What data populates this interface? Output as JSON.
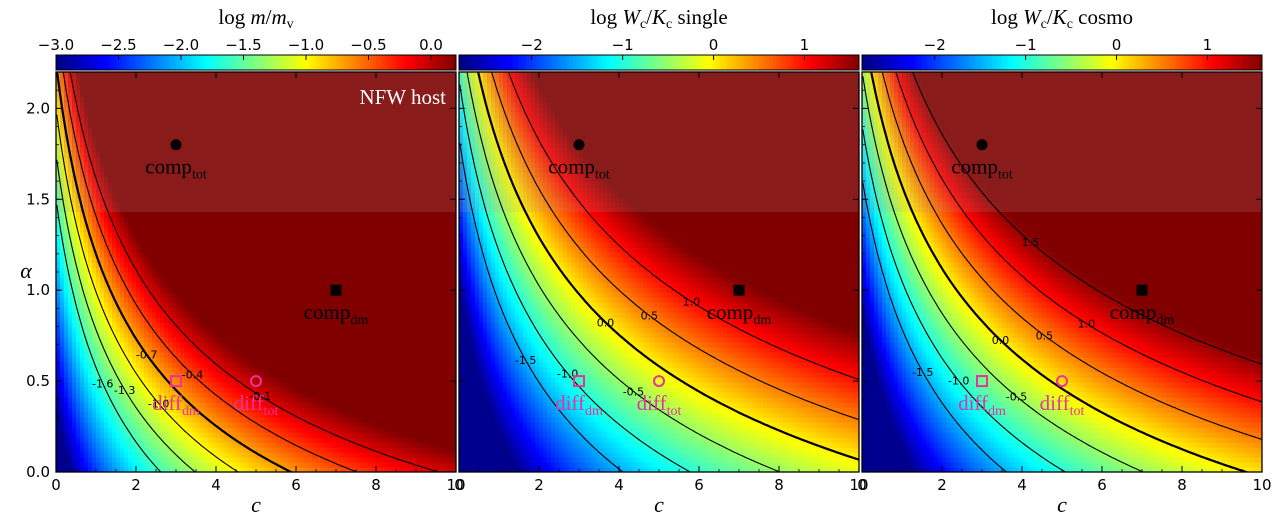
{
  "colors": {
    "marker_dark": "#000000",
    "marker_pink": "#e8339a",
    "contour": "#000000"
  },
  "chart_data": [
    {
      "type": "heatmap",
      "title": "log m/m_v",
      "title_parts": {
        "pre": "log ",
        "m1": "m",
        "sep": "/",
        "m2": "m",
        "sub2": "v",
        "post": ""
      },
      "xlabel": "c",
      "ylabel": "α",
      "xlim": [
        0,
        10
      ],
      "ylim": [
        0,
        2.2
      ],
      "x_ticks": [
        "0",
        "2",
        "4",
        "6",
        "8",
        "10"
      ],
      "y_ticks": [
        "0.0",
        "0.5",
        "1.0",
        "1.5",
        "2.0"
      ],
      "colorbar": {
        "range": [
          -3.0,
          0.2
        ],
        "ticks": [
          -3.0,
          -2.5,
          -2.0,
          -1.5,
          -1.0,
          -0.5,
          0.0
        ],
        "tick_labels": [
          "−3.0",
          "−2.5",
          "−2.0",
          "−1.5",
          "−1.0",
          "−0.5",
          "0.0"
        ]
      },
      "contours": [
        {
          "level": -1.6,
          "label": "-1.6"
        },
        {
          "level": -1.3,
          "label": "-1.3"
        },
        {
          "level": -1.0,
          "label": "-1.0"
        },
        {
          "level": -0.7,
          "label": "-0.7",
          "bold": true
        },
        {
          "level": -0.4,
          "label": "-0.4"
        },
        {
          "level": -0.1,
          "label": "-0.1"
        }
      ],
      "annotation": "NFW host",
      "points": [
        {
          "name": "comp",
          "sub": "tot",
          "c": 3,
          "alpha": 1.8,
          "marker": "circle",
          "color": "dark"
        },
        {
          "name": "comp",
          "sub": "dm",
          "c": 7,
          "alpha": 1.0,
          "marker": "square",
          "color": "dark"
        },
        {
          "name": "diff",
          "sub": "dm",
          "c": 3,
          "alpha": 0.5,
          "marker": "square-open",
          "color": "pink"
        },
        {
          "name": "diff",
          "sub": "tot",
          "c": 5,
          "alpha": 0.5,
          "marker": "circle-open",
          "color": "pink"
        }
      ]
    },
    {
      "type": "heatmap",
      "title": "log Wc/Kc single",
      "title_parts": {
        "pre": "log ",
        "m1": "W",
        "sub1": "c",
        "sep": "/",
        "m2": "K",
        "sub2": "c",
        "post": " single"
      },
      "xlabel": "c",
      "xlim": [
        0,
        10
      ],
      "ylim": [
        0,
        2.2
      ],
      "x_ticks": [
        "0",
        "2",
        "4",
        "6",
        "8",
        "10"
      ],
      "colorbar": {
        "range": [
          -2.8,
          1.6
        ],
        "ticks": [
          -2,
          -1,
          0,
          1
        ],
        "tick_labels": [
          "−2",
          "−1",
          "0",
          "1"
        ]
      },
      "contours": [
        {
          "level": -1.5,
          "label": "-1.5"
        },
        {
          "level": -1.0,
          "label": "-1.0"
        },
        {
          "level": -0.5,
          "label": "-0.5"
        },
        {
          "level": 0.0,
          "label": "0.0",
          "bold": true
        },
        {
          "level": 0.5,
          "label": "0.5"
        },
        {
          "level": 1.0,
          "label": "1.0"
        }
      ],
      "points": [
        {
          "name": "comp",
          "sub": "tot",
          "c": 3,
          "alpha": 1.8,
          "marker": "circle",
          "color": "dark"
        },
        {
          "name": "comp",
          "sub": "dm",
          "c": 7,
          "alpha": 1.0,
          "marker": "square",
          "color": "dark"
        },
        {
          "name": "diff",
          "sub": "dm",
          "c": 3,
          "alpha": 0.5,
          "marker": "square-open",
          "color": "pink"
        },
        {
          "name": "diff",
          "sub": "tot",
          "c": 5,
          "alpha": 0.5,
          "marker": "circle-open",
          "color": "pink"
        }
      ]
    },
    {
      "type": "heatmap",
      "title": "log Wc/Kc cosmo",
      "title_parts": {
        "pre": "log ",
        "m1": "W",
        "sub1": "c",
        "sep": "/",
        "m2": "K",
        "sub2": "c",
        "post": " cosmo"
      },
      "xlabel": "c",
      "xlim": [
        0,
        10
      ],
      "ylim": [
        0,
        2.2
      ],
      "x_ticks": [
        "0",
        "2",
        "4",
        "6",
        "8",
        "10"
      ],
      "colorbar": {
        "range": [
          -2.8,
          1.6
        ],
        "ticks": [
          -2,
          -1,
          0,
          1
        ],
        "tick_labels": [
          "−2",
          "−1",
          "0",
          "1"
        ]
      },
      "contours": [
        {
          "level": -1.5,
          "label": "-1.5"
        },
        {
          "level": -1.0,
          "label": "-1.0"
        },
        {
          "level": -0.5,
          "label": "-0.5"
        },
        {
          "level": 0.0,
          "label": "0.0",
          "bold": true
        },
        {
          "level": 0.5,
          "label": "0.5"
        },
        {
          "level": 1.0,
          "label": "1.0"
        },
        {
          "level": 1.5,
          "label": "1.5"
        }
      ],
      "points": [
        {
          "name": "comp",
          "sub": "tot",
          "c": 3,
          "alpha": 1.8,
          "marker": "circle",
          "color": "dark"
        },
        {
          "name": "comp",
          "sub": "dm",
          "c": 7,
          "alpha": 1.0,
          "marker": "square",
          "color": "dark"
        },
        {
          "name": "diff",
          "sub": "dm",
          "c": 3,
          "alpha": 0.5,
          "marker": "square-open",
          "color": "pink"
        },
        {
          "name": "diff",
          "sub": "tot",
          "c": 5,
          "alpha": 0.5,
          "marker": "circle-open",
          "color": "pink"
        }
      ]
    }
  ]
}
